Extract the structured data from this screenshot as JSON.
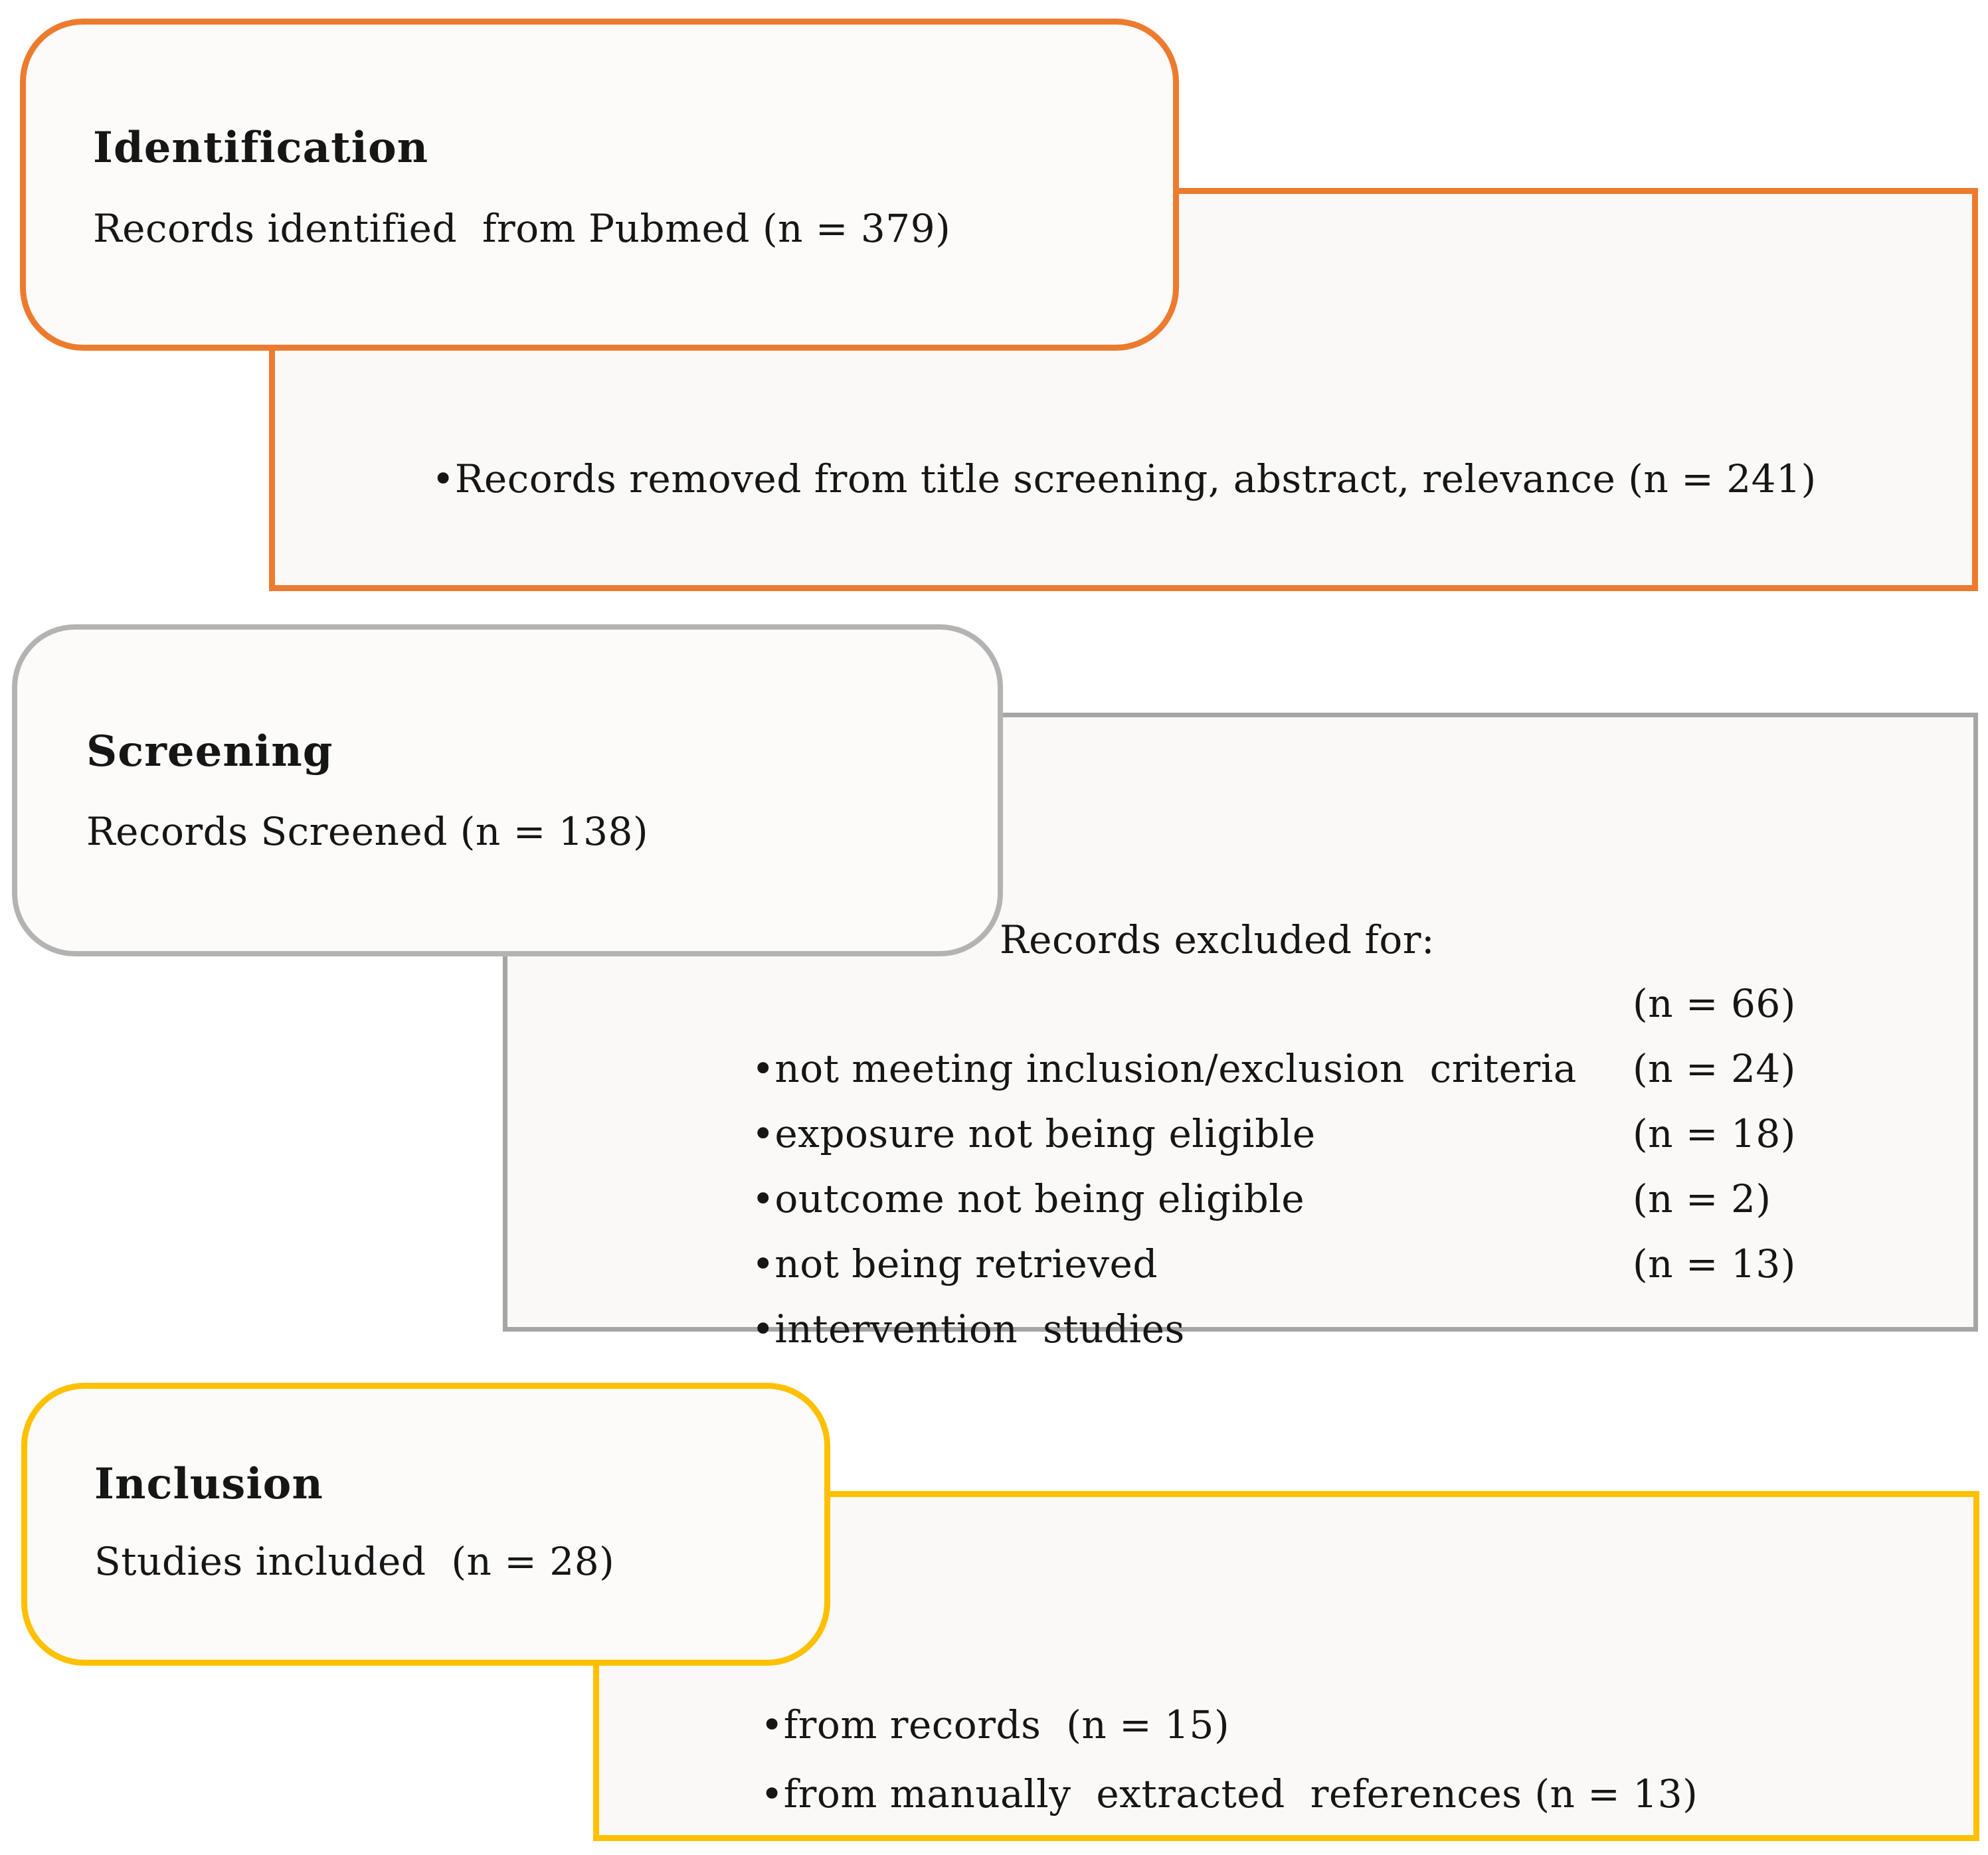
{
  "palette": {
    "identification_accent": "#ED7B2F",
    "screening_accent": "#A6A6A6",
    "inclusion_accent": "#FFC000",
    "text": "#161616"
  },
  "stages": {
    "identification": {
      "title": "Identification",
      "summary": "Records identified  from Pubmed (n = 379)",
      "note_bullet": "•Records removed from title screening, abstract, relevance (n = 241)"
    },
    "screening": {
      "title": "Screening",
      "summary": "Records Screened (n = 138)",
      "exclusions_heading": "Records excluded for:",
      "exclusions": [
        {
          "label": "•not meeting inclusion/exclusion  criteria",
          "count": "(n = 66)"
        },
        {
          "label": "•exposure not being eligible",
          "count": "(n = 24)"
        },
        {
          "label": "•outcome not being eligible",
          "count": "(n = 18)"
        },
        {
          "label": "•not being retrieved",
          "count": "(n = 2)"
        },
        {
          "label": "•intervention  studies",
          "count": "(n = 13)"
        }
      ]
    },
    "inclusion": {
      "title": "Inclusion",
      "summary": "Studies included  (n = 28)",
      "sources": [
        "•from records  (n = 15)",
        "•from manually  extracted  references (n = 13)"
      ]
    }
  }
}
